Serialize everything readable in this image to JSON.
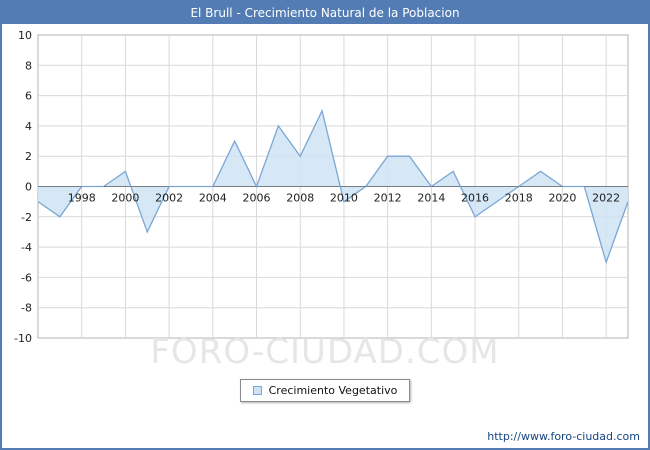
{
  "window": {
    "title": "El Brull - Crecimiento Natural de la Poblacion"
  },
  "legend": {
    "label": "Crecimiento Vegetativo"
  },
  "watermark": "FORO-CIUDAD.COM",
  "footer": {
    "url": "http://www.foro-ciudad.com"
  },
  "colors": {
    "titlebar": "#537cb4",
    "line": "#7aa7d4",
    "fill": "#cfe3f5",
    "grid": "#d9d9d9",
    "zero": "#333333",
    "watermark": "#e6e6e6",
    "url": "#16467f"
  },
  "chart_data": {
    "type": "area",
    "title": "El Brull - Crecimiento Natural de la Poblacion",
    "xlabel": "",
    "ylabel": "",
    "x": [
      1996,
      1997,
      1998,
      1999,
      2000,
      2001,
      2002,
      2003,
      2004,
      2005,
      2006,
      2007,
      2008,
      2009,
      2010,
      2011,
      2012,
      2013,
      2014,
      2015,
      2016,
      2017,
      2018,
      2019,
      2020,
      2021,
      2022,
      2023
    ],
    "series": [
      {
        "name": "Crecimiento Vegetativo",
        "values": [
          -1,
          -2,
          0,
          0,
          1,
          -3,
          0,
          0,
          0,
          3,
          0,
          4,
          2,
          5,
          -1,
          0,
          2,
          2,
          0,
          1,
          -2,
          -1,
          0,
          1,
          0,
          0,
          -5,
          -1
        ]
      }
    ],
    "ylim": [
      -10,
      10
    ],
    "ytick_step": 2,
    "xticks": [
      1998,
      2000,
      2002,
      2004,
      2006,
      2008,
      2010,
      2012,
      2014,
      2016,
      2018,
      2020,
      2022
    ],
    "grid": true,
    "baseline": 0,
    "legend_position": "bottom"
  }
}
